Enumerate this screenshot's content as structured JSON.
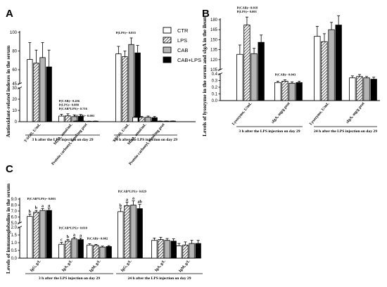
{
  "legend": [
    {
      "name": "CTR",
      "fill": "white"
    },
    {
      "name": "LPS",
      "fill": "hatch"
    },
    {
      "name": "CAB",
      "fill": "grey"
    },
    {
      "name": "CAB+LPS",
      "fill": "black"
    }
  ],
  "colors": {
    "grey": "#b5b5b5",
    "black": "#000000",
    "hatch_line": "#000000"
  },
  "chart_data": [
    {
      "panel": "A",
      "type": "bar",
      "ylabel": "Antioxidant-related indexes in the serum",
      "axis_break": {
        "lower": [
          0,
          30
        ],
        "upper": [
          45,
          100
        ]
      },
      "ticks": [
        0,
        10,
        20,
        30,
        45,
        60,
        80,
        100
      ],
      "groups": [
        {
          "label": "3 h after the LPS injection on day 29",
          "categories": [
            {
              "label": "T-SOD, U/mL",
              "values": [
                71,
                67,
                73,
                63
              ],
              "errors": [
                18,
                14,
                16,
                18
              ],
              "annotation": "",
              "letters": []
            },
            {
              "label": "MDA, nmol/mL",
              "values": [
                5,
                5.2,
                4.5,
                4.8
              ],
              "errors": [
                1.6,
                1.8,
                1.6,
                1.6
              ],
              "annotation": "P(CAB)= 0.456 P(LPS)= 0.080 P(CAB*LPS)= 0.716",
              "letters": []
            },
            {
              "label": "Protein carbonyl, nmol/mg prot",
              "values": [
                0.5,
                0.5,
                0.4,
                0.45
              ],
              "errors": [
                0.1,
                0.1,
                0.1,
                0.1
              ],
              "annotation": "P(CAB)= 0.001",
              "letters": []
            }
          ]
        },
        {
          "label": "24 h after the LPS injection on day 29",
          "categories": [
            {
              "label": "T-SOD, U/mL",
              "values": [
                77,
                74,
                87,
                78
              ],
              "errors": [
                8,
                6,
                7,
                8
              ],
              "annotation": "P(LPS)= 0.035",
              "letters": []
            },
            {
              "label": "MDA, nmol/mL",
              "values": [
                3.8,
                3.8,
                4,
                3.6
              ],
              "errors": [
                1,
                0.9,
                1,
                1
              ],
              "annotation": "",
              "letters": []
            },
            {
              "label": "Protein carbonyl, nmol/mg prot",
              "values": [
                0.5,
                0.5,
                0.5,
                0.55
              ],
              "errors": [
                0.1,
                0.1,
                0.1,
                0.1
              ],
              "annotation": "",
              "letters": []
            }
          ]
        }
      ]
    },
    {
      "panel": "B",
      "type": "bar",
      "ylabel": "Levels of lysozyme in the serum and sIgA in the ileum",
      "axis_break": {
        "lower": [
          0,
          0.4
        ],
        "upper": [
          105,
          180
        ]
      },
      "ticks": [
        0,
        0.1,
        0.2,
        0.3,
        0.4,
        105,
        120,
        135,
        150,
        165,
        180
      ],
      "groups": [
        {
          "label": "3 h after the LPS injection on day 29",
          "categories": [
            {
              "label": "Lysozyme, U/mL",
              "values": [
                128,
                172,
                129,
                146
              ],
              "errors": [
                14,
                12,
                8,
                11
              ],
              "annotation": "P(CAB)= 0.018 P(LPS)= 0.001",
              "letters": []
            },
            {
              "label": "sIgA, mg/g prot",
              "values": [
                0.27,
                0.29,
                0.26,
                0.27
              ],
              "errors": [
                0.02,
                0.02,
                0.02,
                0.02
              ],
              "annotation": "P(CAB)= 0.043",
              "letters": []
            }
          ]
        },
        {
          "label": "24 h after the LPS injection on day 29",
          "categories": [
            {
              "label": "Lysozyme, U/mL",
              "values": [
                155,
                147,
                165,
                172
              ],
              "errors": [
                15,
                12,
                11,
                14
              ],
              "annotation": "",
              "letters": []
            },
            {
              "label": "sIgA, mg/g prot",
              "values": [
                0.34,
                0.36,
                0.34,
                0.32
              ],
              "errors": [
                0.03,
                0.03,
                0.02,
                0.03
              ],
              "annotation": "",
              "letters": []
            }
          ]
        }
      ]
    },
    {
      "panel": "C",
      "type": "bar",
      "ylabel": "Levels of immunoglobulins in the serum",
      "axis_break": {
        "lower": [
          0,
          2.0
        ],
        "upper": [
          5.0,
          9.0
        ]
      },
      "ticks": [
        0,
        0.5,
        1.0,
        1.5,
        2.0,
        5.0,
        6.0,
        7.0,
        8.0,
        9.0
      ],
      "groups": [
        {
          "label": "3 h after the LPS injection on day 29",
          "categories": [
            {
              "label": "IgG, g/L",
              "values": [
                6.1,
                6.8,
                7.1,
                7.1
              ],
              "errors": [
                0.4,
                0.3,
                0.3,
                0.4
              ],
              "annotation": "P(CAB*LPS)= 0.003",
              "letters": [
                "b",
                "b",
                "a",
                "a"
              ]
            },
            {
              "label": "IgA, g/L",
              "values": [
                0.9,
                1.1,
                1.25,
                1.2
              ],
              "errors": [
                0.12,
                0.1,
                0.1,
                0.1
              ],
              "annotation": "P(CAB*LPS)= 0.010",
              "letters": [
                "c",
                "b",
                "a",
                "a"
              ]
            },
            {
              "label": "IgM, g/L",
              "values": [
                0.85,
                0.82,
                0.72,
                0.75
              ],
              "errors": [
                0.08,
                0.07,
                0.06,
                0.06
              ],
              "annotation": "P(CAB)= 0.002",
              "letters": []
            }
          ]
        },
        {
          "label": "24 h after the LPS injection on day 29",
          "categories": [
            {
              "label": "IgG, g/L",
              "values": [
                6.9,
                7.9,
                8.0,
                7.4
              ],
              "errors": [
                0.6,
                0.6,
                0.7,
                0.7
              ],
              "annotation": "P(CAB*LPS)= 0.029",
              "letters": [
                "b",
                "a",
                "a",
                "ab"
              ]
            },
            {
              "label": "IgA, g/L",
              "values": [
                1.15,
                1.2,
                1.15,
                1.1
              ],
              "errors": [
                0.15,
                0.15,
                0.12,
                0.15
              ],
              "annotation": "",
              "letters": []
            },
            {
              "label": "IgM, g/L",
              "values": [
                0.8,
                0.85,
                0.95,
                0.95
              ],
              "errors": [
                0.15,
                0.2,
                0.2,
                0.2
              ],
              "annotation": "",
              "letters": []
            }
          ]
        }
      ]
    }
  ]
}
